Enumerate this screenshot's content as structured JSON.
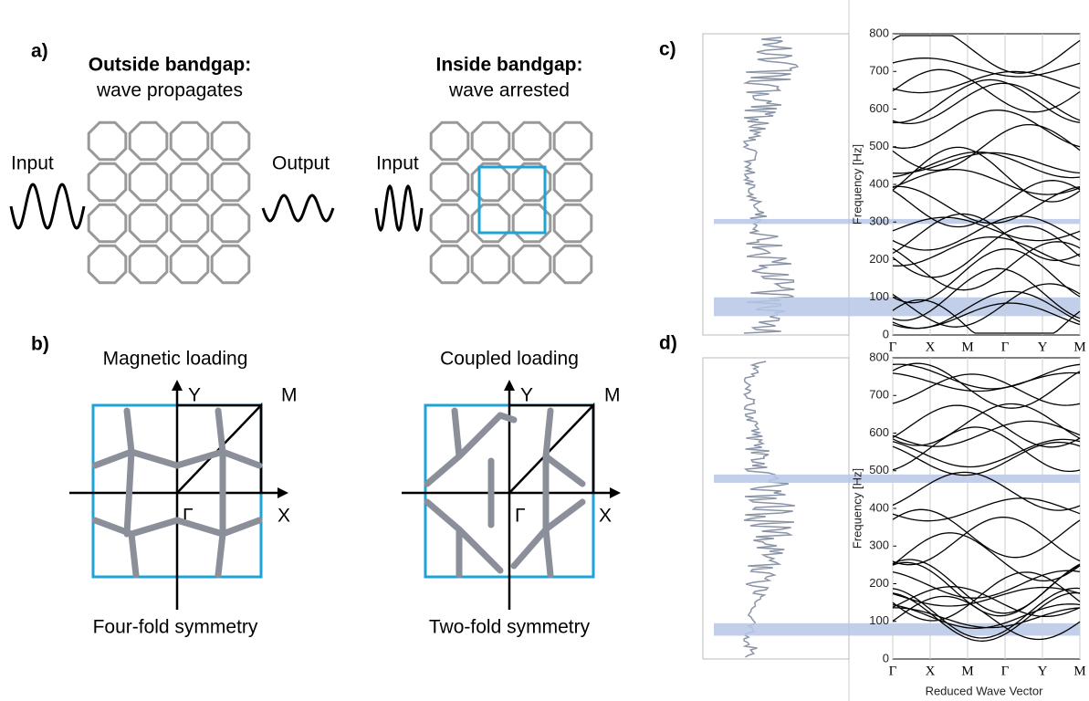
{
  "panels": {
    "a": {
      "label": "a)",
      "left": {
        "title": "Outside bandgap:",
        "subtitle": "wave propagates",
        "input": "Input",
        "output": "Output"
      },
      "right": {
        "title": "Inside bandgap:",
        "subtitle": "wave arrested",
        "input": "Input"
      }
    },
    "b": {
      "label": "b)",
      "left": {
        "title": "Magnetic loading",
        "caption": "Four-fold symmetry",
        "y": "Y",
        "m": "M",
        "gamma": "Γ",
        "x": "X"
      },
      "right": {
        "title": "Coupled loading",
        "caption": "Two-fold symmetry",
        "y": "Y",
        "m": "M",
        "gamma": "Γ",
        "x": "X"
      }
    },
    "c": {
      "label": "c)"
    },
    "d": {
      "label": "d)"
    }
  },
  "band_plots": {
    "ylabel": "Frequency [Hz]",
    "xlabel": "Reduced Wave Vector",
    "xticks": [
      "Γ",
      "X",
      "M",
      "Γ",
      "Y",
      "M"
    ],
    "ylim": [
      0,
      800
    ],
    "yticks": [
      0,
      100,
      200,
      300,
      400,
      500,
      600,
      700,
      800
    ]
  }
}
